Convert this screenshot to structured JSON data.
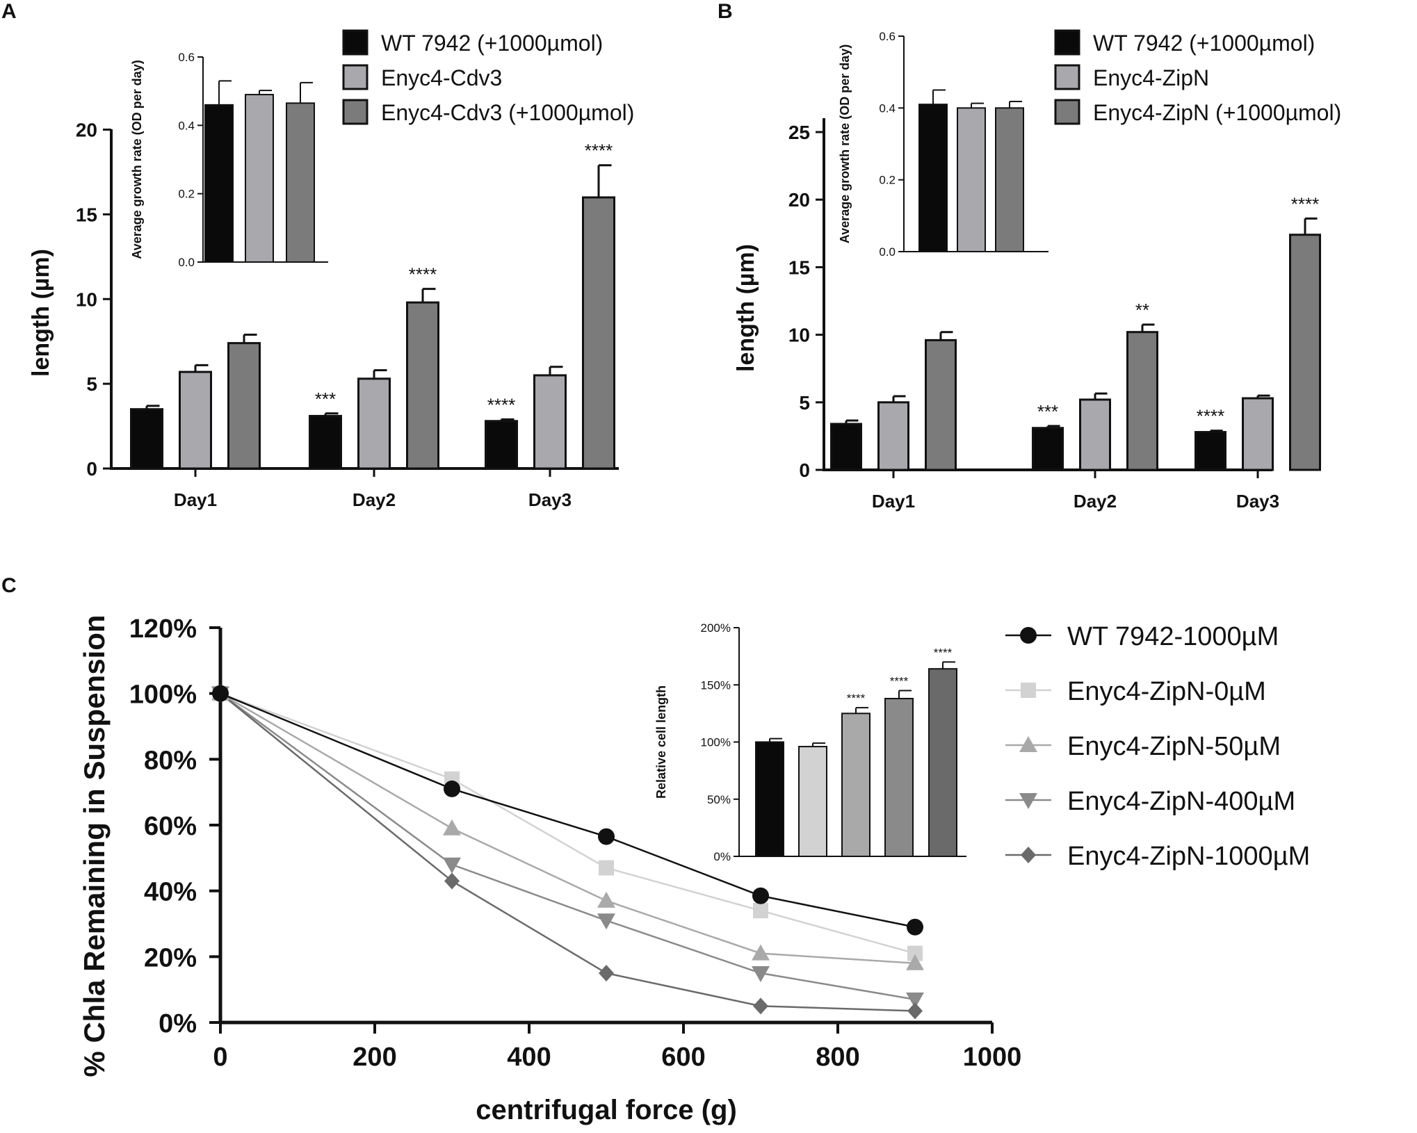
{
  "panels": [
    {
      "letter": "A"
    },
    {
      "letter": "B"
    },
    {
      "letter": "C"
    }
  ],
  "colors": {
    "axis": "#111111",
    "bar_black": "#0a0a0a",
    "bar_light": "#a9a9ad",
    "bar_dark": "#7b7b7b",
    "line_wt": "#111111",
    "line_0": "#d2d2d2",
    "line_50": "#a9a9a9",
    "line_400": "#8a8a8a",
    "line_1000": "#6a6a6a"
  },
  "chart_data": [
    {
      "id": "A-main",
      "type": "bar",
      "ylabel": "length (µm)",
      "xlabel": "",
      "ylim": [
        0,
        25
      ],
      "yticks": [
        0,
        5,
        10,
        15,
        20
      ],
      "categories": [
        "Day1",
        "Day2",
        "Day3"
      ],
      "series": [
        {
          "name": "WT 7942 (+1000µmol)",
          "values": [
            3.5,
            3.1,
            2.8
          ],
          "errors": [
            0.2,
            0.15,
            0.1
          ],
          "sig": [
            "",
            "***",
            "****"
          ]
        },
        {
          "name": "Enyc4-Cdv3",
          "values": [
            5.7,
            5.3,
            5.5
          ],
          "errors": [
            0.4,
            0.5,
            0.5
          ],
          "sig": [
            "",
            "",
            ""
          ]
        },
        {
          "name": "Enyc4-Cdv3 (+1000µmol)",
          "values": [
            7.4,
            9.8,
            16.0
          ],
          "errors": [
            0.5,
            0.8,
            1.9
          ],
          "sig": [
            "",
            "****",
            "****"
          ]
        }
      ],
      "legend": [
        "WT 7942 (+1000µmol)",
        "Enyc4-Cdv3",
        "Enyc4-Cdv3 (+1000µmol)"
      ]
    },
    {
      "id": "A-inset",
      "type": "bar",
      "ylabel": "Average growth rate (OD per day)",
      "ylim": [
        0,
        0.6
      ],
      "yticks": [
        "0.0",
        "0.2",
        "0.4",
        "0.6"
      ],
      "categories": [
        "WT 7942 (+1000µmol)",
        "Enyc4-Cdv3",
        "Enyc4-Cdv3 (+1000µmol)"
      ],
      "values": [
        0.46,
        0.49,
        0.465
      ],
      "errors": [
        0.07,
        0.012,
        0.06
      ]
    },
    {
      "id": "B-main",
      "type": "bar",
      "ylabel": "length (µm)",
      "xlabel": "",
      "ylim": [
        0,
        27.5
      ],
      "yticks": [
        0,
        5,
        10,
        15,
        20,
        25
      ],
      "categories": [
        "Day1",
        "Day2",
        "Day3"
      ],
      "series": [
        {
          "name": "WT 7942 (+1000µmol)",
          "values": [
            3.4,
            3.1,
            2.8
          ],
          "errors": [
            0.25,
            0.15,
            0.1
          ],
          "sig": [
            "",
            "***",
            "****"
          ]
        },
        {
          "name": "Enyc4-ZipN",
          "values": [
            5.0,
            5.2,
            5.3
          ],
          "errors": [
            0.45,
            0.45,
            0.2
          ],
          "sig": [
            "",
            "",
            ""
          ]
        },
        {
          "name": "Enyc4-ZipN (+1000µmol)",
          "values": [
            9.6,
            10.2,
            17.4
          ],
          "errors": [
            0.6,
            0.55,
            1.2
          ],
          "sig": [
            "",
            "**",
            "****"
          ]
        }
      ],
      "legend": [
        "WT 7942 (+1000µmol)",
        "Enyc4-ZipN",
        "Enyc4-ZipN (+1000µmol)"
      ]
    },
    {
      "id": "B-inset",
      "type": "bar",
      "ylabel": "Average growth rate (OD per day)",
      "ylim": [
        0,
        0.6
      ],
      "yticks": [
        "0.0",
        "0.2",
        "0.4",
        "0.6"
      ],
      "categories": [
        "WT 7942 (+1000µmol)",
        "Enyc4-ZipN",
        "Enyc4-ZipN (+1000µmol)"
      ],
      "values": [
        0.41,
        0.4,
        0.4
      ],
      "errors": [
        0.04,
        0.013,
        0.018
      ]
    },
    {
      "id": "C-main",
      "type": "line",
      "xlabel": "centrifugal force (g)",
      "ylabel": "% Chla Remaining in Suspension",
      "xlim": [
        0,
        1000
      ],
      "ylim": [
        0,
        120
      ],
      "xticks": [
        0,
        200,
        400,
        600,
        800,
        1000
      ],
      "yticks": [
        "0%",
        "20%",
        "40%",
        "60%",
        "80%",
        "100%",
        "120%"
      ],
      "x": [
        0,
        300,
        500,
        700,
        900
      ],
      "series": [
        {
          "name": "WT 7942-1000µM",
          "marker": "circle",
          "values": [
            100,
            71,
            56.5,
            38.5,
            29
          ]
        },
        {
          "name": "Enyc4-ZipN-0µM",
          "marker": "square",
          "values": [
            100,
            74,
            47,
            34,
            21
          ]
        },
        {
          "name": "Enyc4-ZipN-50µM",
          "marker": "triangle-up",
          "values": [
            100,
            59,
            37,
            21,
            18
          ]
        },
        {
          "name": "Enyc4-ZipN-400µM",
          "marker": "triangle-down",
          "values": [
            100,
            48,
            31,
            15,
            7
          ]
        },
        {
          "name": "Enyc4-ZipN-1000µM",
          "marker": "diamond",
          "values": [
            100,
            43,
            15,
            5,
            3.5
          ]
        }
      ]
    },
    {
      "id": "C-inset",
      "type": "bar",
      "ylabel": "Relative cell length",
      "ylim": [
        0,
        200
      ],
      "yticks": [
        "0%",
        "50%",
        "100%",
        "150%",
        "200%"
      ],
      "categories": [
        "WT 7942-1000µM",
        "Enyc4-ZipN-0µM",
        "Enyc4-ZipN-50µM",
        "Enyc4-ZipN-400µM",
        "Enyc4-ZipN-1000µM"
      ],
      "values": [
        100,
        96,
        125,
        138,
        164
      ],
      "errors": [
        3,
        3,
        5,
        7,
        6
      ],
      "sig": [
        "",
        "",
        "****",
        "****",
        "****"
      ]
    }
  ]
}
